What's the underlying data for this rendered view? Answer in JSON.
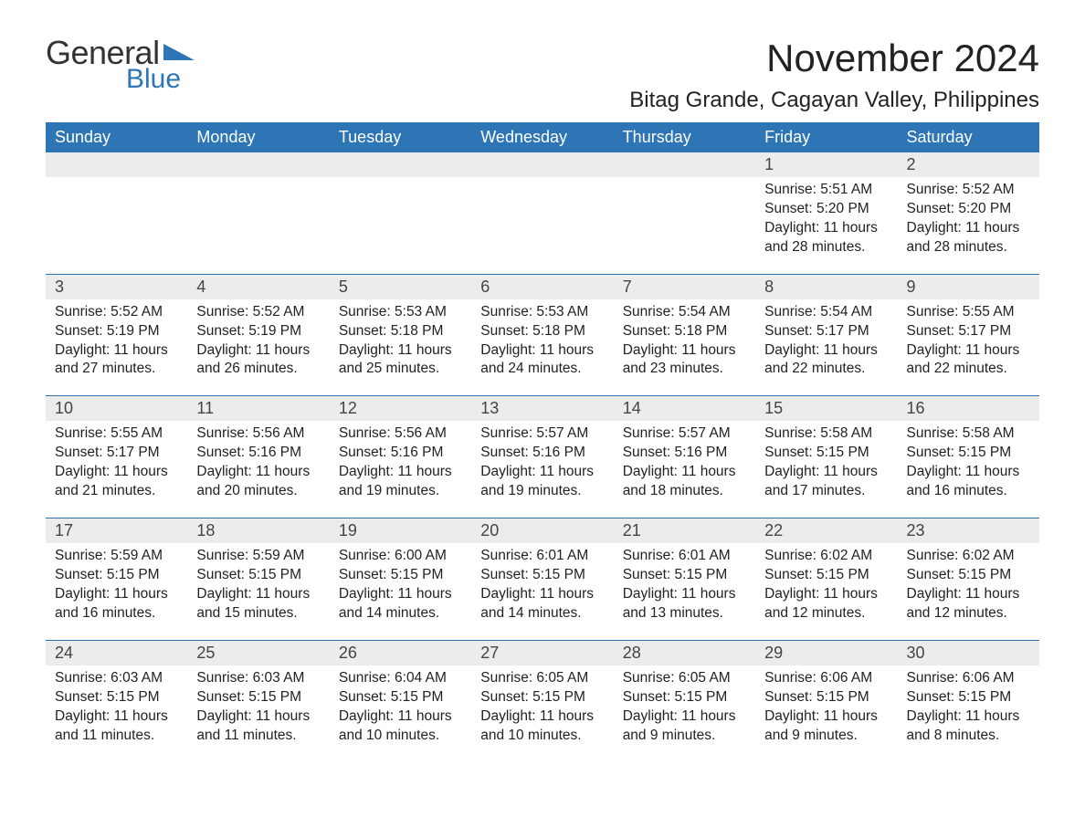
{
  "logo": {
    "text1": "General",
    "text2": "Blue",
    "tri_color": "#2e75b6"
  },
  "header": {
    "month_title": "November 2024",
    "location": "Bitag Grande, Cagayan Valley, Philippines"
  },
  "styles": {
    "header_bg": "#2e75b6",
    "header_text": "#ffffff",
    "daynum_bg": "#ececec",
    "week_sep": "#2e75b6",
    "text_color": "#222222",
    "month_fontsize": 42,
    "location_fontsize": 24,
    "dayhead_fontsize": 18,
    "body_fontsize": 15.5
  },
  "dayHeaders": [
    "Sunday",
    "Monday",
    "Tuesday",
    "Wednesday",
    "Thursday",
    "Friday",
    "Saturday"
  ],
  "weeks": [
    [
      null,
      null,
      null,
      null,
      null,
      {
        "n": "1",
        "sr": "Sunrise: 5:51 AM",
        "ss": "Sunset: 5:20 PM",
        "dl": "Daylight: 11 hours and 28 minutes."
      },
      {
        "n": "2",
        "sr": "Sunrise: 5:52 AM",
        "ss": "Sunset: 5:20 PM",
        "dl": "Daylight: 11 hours and 28 minutes."
      }
    ],
    [
      {
        "n": "3",
        "sr": "Sunrise: 5:52 AM",
        "ss": "Sunset: 5:19 PM",
        "dl": "Daylight: 11 hours and 27 minutes."
      },
      {
        "n": "4",
        "sr": "Sunrise: 5:52 AM",
        "ss": "Sunset: 5:19 PM",
        "dl": "Daylight: 11 hours and 26 minutes."
      },
      {
        "n": "5",
        "sr": "Sunrise: 5:53 AM",
        "ss": "Sunset: 5:18 PM",
        "dl": "Daylight: 11 hours and 25 minutes."
      },
      {
        "n": "6",
        "sr": "Sunrise: 5:53 AM",
        "ss": "Sunset: 5:18 PM",
        "dl": "Daylight: 11 hours and 24 minutes."
      },
      {
        "n": "7",
        "sr": "Sunrise: 5:54 AM",
        "ss": "Sunset: 5:18 PM",
        "dl": "Daylight: 11 hours and 23 minutes."
      },
      {
        "n": "8",
        "sr": "Sunrise: 5:54 AM",
        "ss": "Sunset: 5:17 PM",
        "dl": "Daylight: 11 hours and 22 minutes."
      },
      {
        "n": "9",
        "sr": "Sunrise: 5:55 AM",
        "ss": "Sunset: 5:17 PM",
        "dl": "Daylight: 11 hours and 22 minutes."
      }
    ],
    [
      {
        "n": "10",
        "sr": "Sunrise: 5:55 AM",
        "ss": "Sunset: 5:17 PM",
        "dl": "Daylight: 11 hours and 21 minutes."
      },
      {
        "n": "11",
        "sr": "Sunrise: 5:56 AM",
        "ss": "Sunset: 5:16 PM",
        "dl": "Daylight: 11 hours and 20 minutes."
      },
      {
        "n": "12",
        "sr": "Sunrise: 5:56 AM",
        "ss": "Sunset: 5:16 PM",
        "dl": "Daylight: 11 hours and 19 minutes."
      },
      {
        "n": "13",
        "sr": "Sunrise: 5:57 AM",
        "ss": "Sunset: 5:16 PM",
        "dl": "Daylight: 11 hours and 19 minutes."
      },
      {
        "n": "14",
        "sr": "Sunrise: 5:57 AM",
        "ss": "Sunset: 5:16 PM",
        "dl": "Daylight: 11 hours and 18 minutes."
      },
      {
        "n": "15",
        "sr": "Sunrise: 5:58 AM",
        "ss": "Sunset: 5:15 PM",
        "dl": "Daylight: 11 hours and 17 minutes."
      },
      {
        "n": "16",
        "sr": "Sunrise: 5:58 AM",
        "ss": "Sunset: 5:15 PM",
        "dl": "Daylight: 11 hours and 16 minutes."
      }
    ],
    [
      {
        "n": "17",
        "sr": "Sunrise: 5:59 AM",
        "ss": "Sunset: 5:15 PM",
        "dl": "Daylight: 11 hours and 16 minutes."
      },
      {
        "n": "18",
        "sr": "Sunrise: 5:59 AM",
        "ss": "Sunset: 5:15 PM",
        "dl": "Daylight: 11 hours and 15 minutes."
      },
      {
        "n": "19",
        "sr": "Sunrise: 6:00 AM",
        "ss": "Sunset: 5:15 PM",
        "dl": "Daylight: 11 hours and 14 minutes."
      },
      {
        "n": "20",
        "sr": "Sunrise: 6:01 AM",
        "ss": "Sunset: 5:15 PM",
        "dl": "Daylight: 11 hours and 14 minutes."
      },
      {
        "n": "21",
        "sr": "Sunrise: 6:01 AM",
        "ss": "Sunset: 5:15 PM",
        "dl": "Daylight: 11 hours and 13 minutes."
      },
      {
        "n": "22",
        "sr": "Sunrise: 6:02 AM",
        "ss": "Sunset: 5:15 PM",
        "dl": "Daylight: 11 hours and 12 minutes."
      },
      {
        "n": "23",
        "sr": "Sunrise: 6:02 AM",
        "ss": "Sunset: 5:15 PM",
        "dl": "Daylight: 11 hours and 12 minutes."
      }
    ],
    [
      {
        "n": "24",
        "sr": "Sunrise: 6:03 AM",
        "ss": "Sunset: 5:15 PM",
        "dl": "Daylight: 11 hours and 11 minutes."
      },
      {
        "n": "25",
        "sr": "Sunrise: 6:03 AM",
        "ss": "Sunset: 5:15 PM",
        "dl": "Daylight: 11 hours and 11 minutes."
      },
      {
        "n": "26",
        "sr": "Sunrise: 6:04 AM",
        "ss": "Sunset: 5:15 PM",
        "dl": "Daylight: 11 hours and 10 minutes."
      },
      {
        "n": "27",
        "sr": "Sunrise: 6:05 AM",
        "ss": "Sunset: 5:15 PM",
        "dl": "Daylight: 11 hours and 10 minutes."
      },
      {
        "n": "28",
        "sr": "Sunrise: 6:05 AM",
        "ss": "Sunset: 5:15 PM",
        "dl": "Daylight: 11 hours and 9 minutes."
      },
      {
        "n": "29",
        "sr": "Sunrise: 6:06 AM",
        "ss": "Sunset: 5:15 PM",
        "dl": "Daylight: 11 hours and 9 minutes."
      },
      {
        "n": "30",
        "sr": "Sunrise: 6:06 AM",
        "ss": "Sunset: 5:15 PM",
        "dl": "Daylight: 11 hours and 8 minutes."
      }
    ]
  ]
}
